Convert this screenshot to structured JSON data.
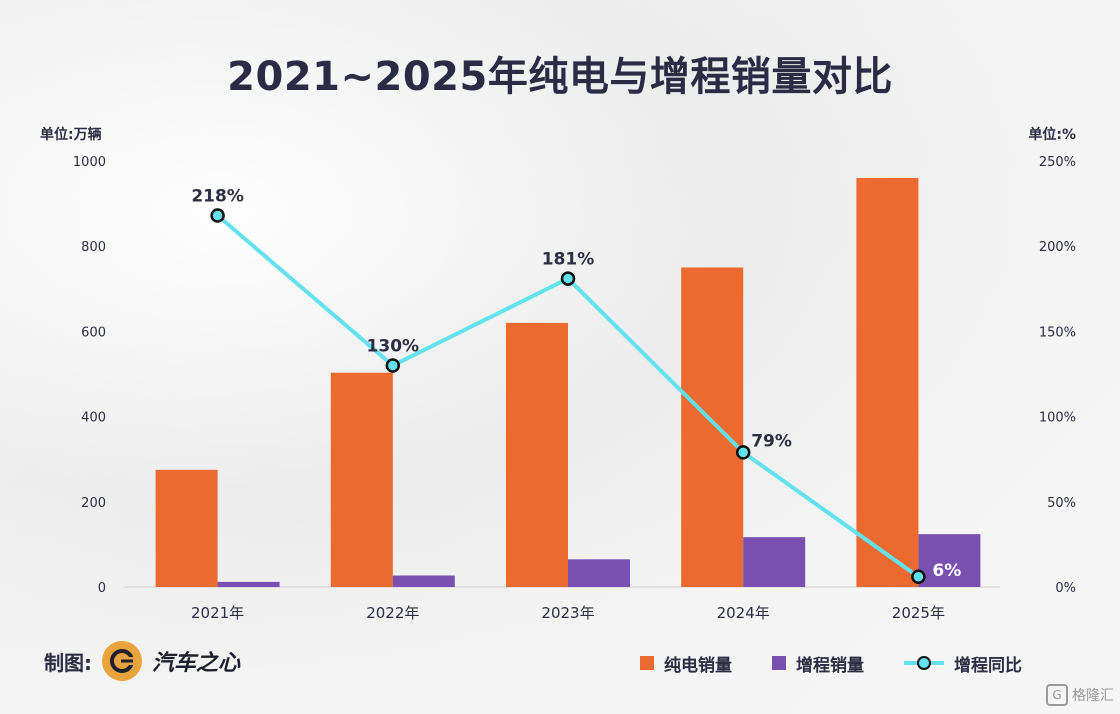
{
  "title": "2021~2025年纯电与增程销量对比",
  "left_unit": "单位:万辆",
  "right_unit": "单位:%",
  "footer_made": "制图:",
  "footer_brand": "汽车之心",
  "watermark": "格隆汇",
  "colors": {
    "bev": "#ec692f",
    "erev": "#7a4fb2",
    "yoy": "#63e1ee"
  },
  "legend": [
    {
      "label": "纯电销量",
      "kind": "bar",
      "color": "#ec692f"
    },
    {
      "label": "增程销量",
      "kind": "bar",
      "color": "#7a4fb2"
    },
    {
      "label": "增程同比",
      "kind": "line",
      "color": "#63e1ee"
    }
  ],
  "chart_data": {
    "type": "bar",
    "title": "2021~2025年纯电与增程销量对比",
    "categories": [
      "2021年",
      "2022年",
      "2023年",
      "2024年",
      "2025年"
    ],
    "series": [
      {
        "name": "纯电销量",
        "type": "bar",
        "axis": "left",
        "values": [
          275,
          503,
          620,
          750,
          960
        ]
      },
      {
        "name": "增程销量",
        "type": "bar",
        "axis": "left",
        "values": [
          12,
          27,
          65,
          117,
          124
        ]
      },
      {
        "name": "增程同比",
        "type": "line",
        "axis": "right",
        "values": [
          218,
          130,
          181,
          79,
          6
        ],
        "labels": [
          "218%",
          "130%",
          "181%",
          "79%",
          "6%"
        ]
      }
    ],
    "y_left": {
      "label": "单位:万辆",
      "min": 0,
      "max": 1000,
      "ticks": [
        0,
        200,
        400,
        600,
        800,
        1000
      ]
    },
    "y_right": {
      "label": "单位:%",
      "min": 0,
      "max": 250,
      "ticks": [
        "0%",
        "50%",
        "100%",
        "150%",
        "200%",
        "250%"
      ]
    },
    "grid": false,
    "legend_position": "bottom-right"
  }
}
